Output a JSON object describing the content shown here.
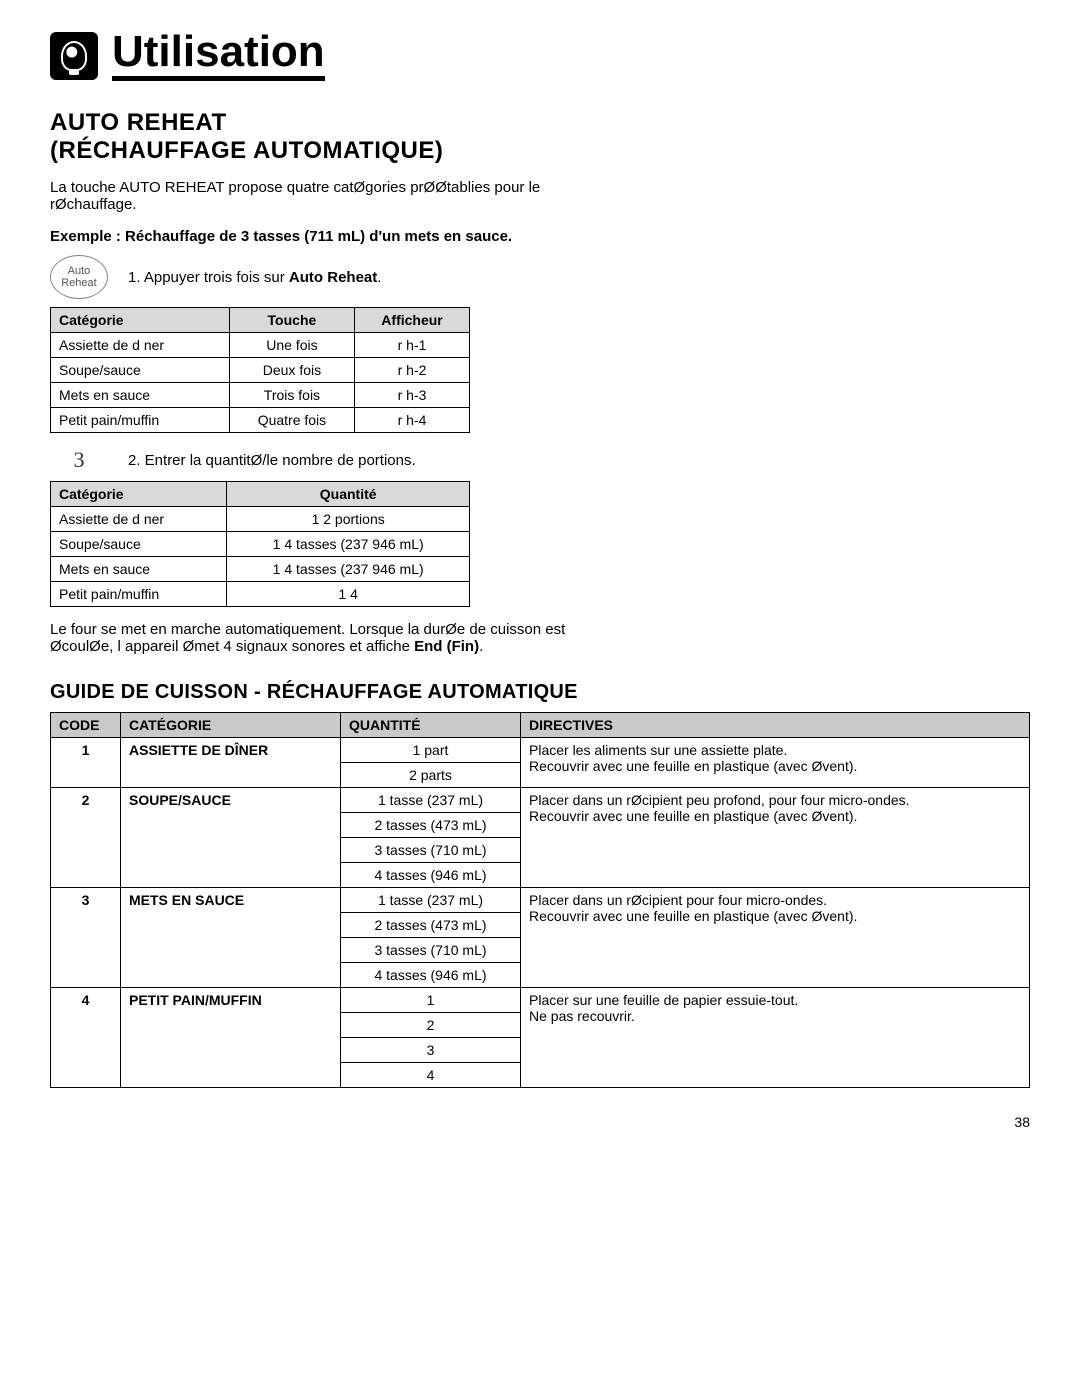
{
  "header": {
    "title": "Utilisation"
  },
  "section1": {
    "heading_l1": "AUTO REHEAT",
    "heading_l2": "(RÉCHAUFFAGE AUTOMATIQUE)",
    "intro": "La touche AUTO REHEAT propose quatre catØgories prØØtablies pour le rØchauffage.",
    "example_label": "Exemple : Réchauffage de 3 tasses (711 mL) d'un mets en sauce.",
    "auto_btn_l1": "Auto",
    "auto_btn_l2": "Reheat",
    "step1_prefix": "1. Appuyer trois fois sur",
    "step1_bold": "Auto Reheat",
    "step1_suffix": ".",
    "table1": {
      "headers": [
        "Catégorie",
        "Touche",
        "Afficheur"
      ],
      "rows": [
        [
          "Assiette de d ner",
          "Une fois",
          "r h-1"
        ],
        [
          "Soupe/sauce",
          "Deux fois",
          "r h-2"
        ],
        [
          "Mets en sauce",
          "Trois fois",
          "r h-3"
        ],
        [
          "Petit pain/muffin",
          "Quatre fois",
          "r h-4"
        ]
      ]
    },
    "step2_num": "3",
    "step2_text": "2. Entrer la quantitØ/le nombre de portions.",
    "table2": {
      "headers": [
        "Catégorie",
        "Quantité"
      ],
      "rows": [
        [
          "Assiette de d ner",
          "1  2 portions"
        ],
        [
          "Soupe/sauce",
          "1  4 tasses (237  946 mL)"
        ],
        [
          "Mets en sauce",
          "1  4 tasses (237  946 mL)"
        ],
        [
          "Petit pain/muffin",
          "1  4"
        ]
      ]
    },
    "footer_prefix": "Le four se met en marche automatiquement. Lorsque la durØe de cuisson est ØcoulØe, l appareil Ømet 4 signaux sonores et affiche ",
    "footer_bold": "End (Fin)",
    "footer_suffix": "."
  },
  "guide": {
    "heading": "GUIDE DE CUISSON - RÉCHAUFFAGE AUTOMATIQUE",
    "headers": [
      "CODE",
      "CATÉGORIE",
      "QUANTITÉ",
      "DIRECTIVES"
    ],
    "groups": [
      {
        "code": "1",
        "cat": "ASSIETTE DE DÎNER",
        "qtys": [
          "1 part",
          "2 parts"
        ],
        "dir": "Placer les aliments sur une assiette plate.\nRecouvrir avec une feuille en plastique (avec Øvent)."
      },
      {
        "code": "2",
        "cat": "SOUPE/SAUCE",
        "qtys": [
          "1 tasse (237 mL)",
          "2 tasses (473 mL)",
          "3 tasses (710 mL)",
          "4 tasses (946 mL)"
        ],
        "dir": "Placer dans un rØcipient peu profond, pour four micro-ondes.\nRecouvrir avec une feuille en plastique (avec Øvent)."
      },
      {
        "code": "3",
        "cat": "METS EN SAUCE",
        "qtys": [
          "1 tasse (237 mL)",
          "2 tasses (473 mL)",
          "3 tasses (710 mL)",
          "4 tasses (946 mL)"
        ],
        "dir": "Placer dans un rØcipient pour four   micro-ondes.\nRecouvrir avec une feuille en plastique (avec Øvent)."
      },
      {
        "code": "4",
        "cat": "PETIT PAIN/MUFFIN",
        "qtys": [
          "1",
          "2",
          "3",
          "4"
        ],
        "dir": "Placer sur une feuille de papier essuie-tout.\nNe pas recouvrir."
      }
    ]
  },
  "page_number": "38"
}
